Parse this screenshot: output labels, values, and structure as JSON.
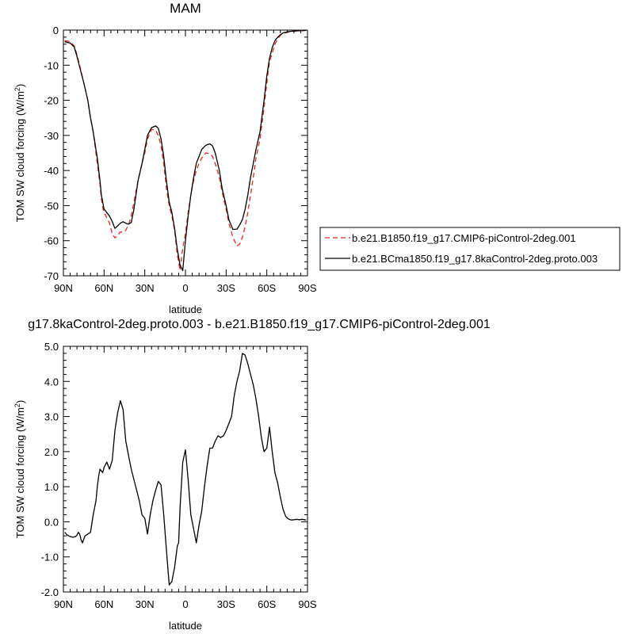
{
  "chart_data": [
    {
      "type": "line",
      "title": "MAM",
      "xlabel": "latitude",
      "ylabel": "TOM SW cloud forcing (W/m^2)",
      "ylim": [
        -70,
        0
      ],
      "xlim": [
        90,
        -90
      ],
      "x_ticks": [
        90,
        60,
        30,
        0,
        -30,
        -60,
        -90
      ],
      "x_tick_labels": [
        "90N",
        "60N",
        "30N",
        "0",
        "30S",
        "60S",
        "90S"
      ],
      "y_ticks": [
        0,
        -10,
        -20,
        -30,
        -40,
        -50,
        -60,
        -70
      ],
      "y_tick_labels": [
        "0",
        "-10",
        "-20",
        "-30",
        "-40",
        "-50",
        "-60",
        "-70"
      ],
      "legend_position": "right",
      "series": [
        {
          "name": "b.e21.B1850.f19_g17.CMIP6-piControl-2deg.001",
          "color": "#e8261c",
          "dash": "dashed",
          "x": [
            89,
            85,
            82,
            80,
            78,
            75,
            72,
            70,
            68,
            65,
            63,
            62,
            61,
            60,
            58,
            56,
            54,
            52,
            50,
            48,
            46,
            44,
            42,
            40,
            38,
            35,
            32,
            30,
            28,
            25,
            22,
            20,
            18,
            16,
            14,
            12,
            10,
            8,
            6,
            4,
            2,
            0,
            -2,
            -4,
            -6,
            -8,
            -10,
            -12,
            -15,
            -18,
            -20,
            -22,
            -25,
            -27,
            -30,
            -32,
            -35,
            -38,
            -40,
            -42,
            -44,
            -46,
            -48,
            -50,
            -52,
            -55,
            -58,
            -60,
            -62,
            -64,
            -66,
            -68,
            -70,
            -72,
            -75,
            -78,
            -80,
            -85,
            -89
          ],
          "y": [
            -3,
            -3.3,
            -4.5,
            -7,
            -10,
            -15,
            -20,
            -25,
            -29,
            -38,
            -44,
            -48,
            -50.5,
            -52,
            -53.5,
            -55,
            -58,
            -59.2,
            -58.5,
            -57.5,
            -57.6,
            -57,
            -55.5,
            -53,
            -49,
            -43,
            -38,
            -35,
            -31,
            -28.3,
            -28.5,
            -30,
            -33,
            -38,
            -45,
            -50,
            -53,
            -57,
            -64,
            -68.5,
            -62,
            -58,
            -52,
            -47,
            -43,
            -40,
            -38,
            -36.5,
            -35,
            -35.2,
            -36,
            -38,
            -42,
            -46,
            -51,
            -55,
            -59,
            -61.5,
            -61,
            -59,
            -56,
            -52,
            -47,
            -42,
            -36.5,
            -31,
            -22,
            -15,
            -9,
            -6.5,
            -4,
            -2.5,
            -1.5,
            -1,
            -0.6,
            -0.4,
            -0.3,
            -0.2,
            -0.1
          ]
        },
        {
          "name": "b.e21.BCma1850.f19_g17.8kaControl-2deg.proto.003",
          "color": "#000000",
          "dash": "solid",
          "x": [
            89,
            85,
            82,
            80,
            78,
            75,
            72,
            70,
            68,
            65,
            63,
            62,
            61,
            60,
            58,
            56,
            54,
            52,
            50,
            48,
            46,
            44,
            42,
            40,
            38,
            35,
            32,
            30,
            28,
            25,
            22,
            20,
            18,
            16,
            14,
            12,
            10,
            8,
            6,
            4,
            2,
            0,
            -2,
            -4,
            -6,
            -8,
            -10,
            -12,
            -15,
            -18,
            -20,
            -22,
            -25,
            -27,
            -30,
            -32,
            -35,
            -38,
            -40,
            -42,
            -44,
            -46,
            -48,
            -50,
            -52,
            -55,
            -58,
            -60,
            -62,
            -64,
            -66,
            -68,
            -70,
            -72,
            -75,
            -78,
            -80,
            -85,
            -89
          ],
          "y": [
            -3.3,
            -3.7,
            -4.8,
            -7.5,
            -10.5,
            -15,
            -20,
            -25,
            -29,
            -36.5,
            -43,
            -47,
            -49,
            -51,
            -52,
            -53,
            -54.5,
            -56.5,
            -55.8,
            -55,
            -54.6,
            -55,
            -55.3,
            -54.8,
            -51,
            -43,
            -38,
            -34,
            -30,
            -27.8,
            -27.3,
            -28,
            -31,
            -36,
            -43,
            -49,
            -52,
            -56.5,
            -62.5,
            -67,
            -68.5,
            -60,
            -53,
            -47,
            -42,
            -38,
            -36,
            -34,
            -32.8,
            -32.4,
            -33,
            -35,
            -40,
            -45,
            -50,
            -54,
            -56.8,
            -56.7,
            -55.5,
            -54,
            -51,
            -47,
            -42,
            -38,
            -34,
            -29,
            -20,
            -13,
            -8,
            -5,
            -3,
            -2,
            -1.3,
            -0.8,
            -0.5,
            -0.35,
            -0.25,
            -0.15,
            -0.1
          ]
        }
      ]
    },
    {
      "type": "line",
      "title": "g17.8kaControl-2deg.proto.003 - b.e21.B1850.f19_g17.CMIP6-piControl-2deg.001",
      "xlabel": "latitude",
      "ylabel": "TOM SW cloud forcing (W/m^2)",
      "ylim": [
        -2.0,
        5.0
      ],
      "xlim": [
        90,
        -90
      ],
      "x_ticks": [
        90,
        60,
        30,
        0,
        -30,
        -60,
        -90
      ],
      "x_tick_labels": [
        "90N",
        "60N",
        "30N",
        "0",
        "30S",
        "60S",
        "90S"
      ],
      "y_ticks": [
        5,
        4,
        3,
        2,
        1,
        0,
        -1,
        -2
      ],
      "y_tick_labels": [
        "5.0",
        "4.0",
        "3.0",
        "2.0",
        "1.0",
        "0.0",
        "-1.0",
        "-2.0"
      ],
      "series": [
        {
          "color": "#000000",
          "dash": "solid",
          "x": [
            89,
            87,
            85,
            83,
            81,
            80,
            79,
            78,
            77,
            76,
            74,
            72,
            70,
            68,
            66,
            65,
            64,
            63,
            62,
            61,
            60,
            58,
            56,
            54,
            52,
            50,
            48,
            46,
            44,
            42,
            40,
            38,
            36,
            34,
            32,
            30,
            28,
            26,
            24,
            22,
            20,
            18,
            16,
            14,
            12,
            10,
            8,
            6,
            5,
            4,
            2,
            0,
            -2,
            -4,
            -6,
            -8,
            -10,
            -12,
            -14,
            -16,
            -18,
            -20,
            -22,
            -24,
            -26,
            -28,
            -30,
            -32,
            -34,
            -36,
            -38,
            -40,
            -42,
            -44,
            -46,
            -48,
            -50,
            -52,
            -54,
            -56,
            -58,
            -60,
            -62,
            -64,
            -66,
            -68,
            -70,
            -72,
            -74,
            -76,
            -78,
            -80,
            -82,
            -84,
            -86,
            -89
          ],
          "y": [
            -0.3,
            -0.38,
            -0.42,
            -0.44,
            -0.42,
            -0.38,
            -0.3,
            -0.35,
            -0.5,
            -0.6,
            -0.4,
            -0.35,
            -0.3,
            0.2,
            0.6,
            1.0,
            1.3,
            1.5,
            1.45,
            1.4,
            1.55,
            1.7,
            1.5,
            1.75,
            2.6,
            3.1,
            3.45,
            3.2,
            2.3,
            1.9,
            1.5,
            1.2,
            0.9,
            0.6,
            0.2,
            0.1,
            -0.35,
            0.2,
            0.6,
            0.9,
            1.15,
            1.05,
            0.2,
            -0.8,
            -1.8,
            -1.7,
            -1.3,
            -0.7,
            -0.6,
            0.4,
            1.7,
            2.05,
            1.2,
            0.2,
            -0.2,
            -0.6,
            -0.1,
            0.3,
            1.0,
            1.6,
            2.1,
            2.1,
            2.3,
            2.45,
            2.4,
            2.45,
            2.6,
            2.8,
            3.0,
            3.6,
            4.0,
            4.3,
            4.8,
            4.75,
            4.5,
            4.2,
            3.9,
            3.5,
            3.0,
            2.4,
            2.0,
            2.1,
            2.7,
            2.0,
            1.4,
            1.1,
            0.7,
            0.35,
            0.15,
            0.08,
            0.05,
            0.06,
            0.07,
            0.06,
            0.07,
            0.05
          ]
        }
      ]
    }
  ]
}
